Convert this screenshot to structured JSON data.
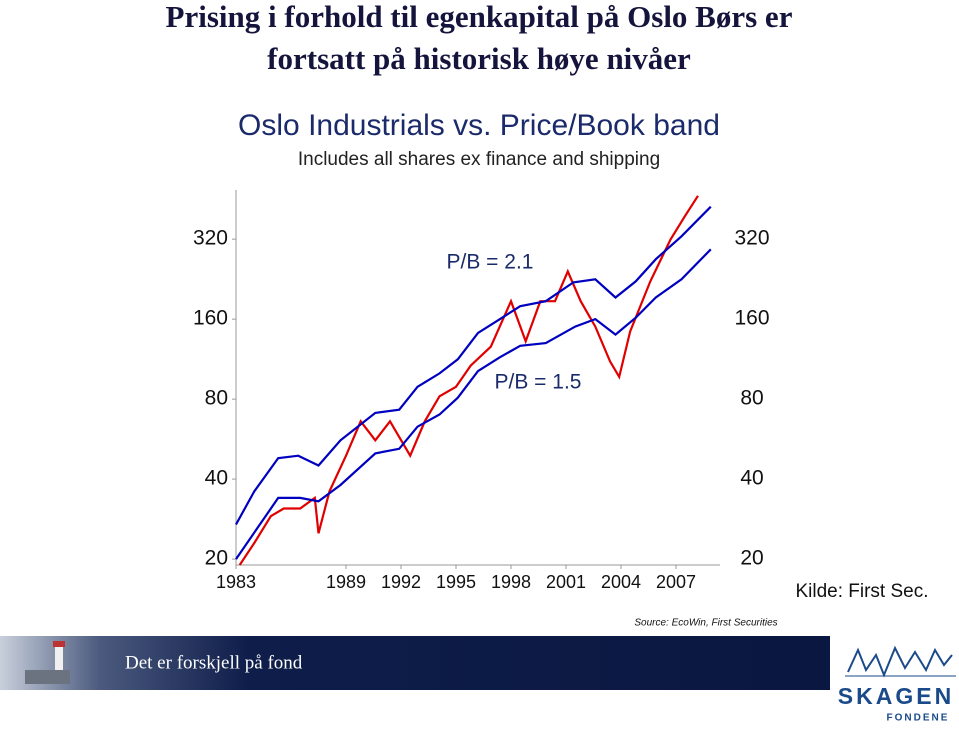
{
  "slide": {
    "title_lines": [
      "Prising i forhold til egenkapital på Oslo Børs er",
      "fortsatt på historisk høye nivåer"
    ],
    "source": "Source: EcoWin, First Securities",
    "kilde": "Kilde: First Sec.",
    "footer_slogan": "Det er forskjell på fond",
    "logo_name": "SKAGEN",
    "logo_sub": "FONDENE"
  },
  "chart_data": {
    "type": "line",
    "title": "Oslo Industrials vs. Price/Book band",
    "subtitle": "Includes all shares ex finance and shipping",
    "annotations": [
      "P/B = 2.1",
      "P/B = 1.5"
    ],
    "log_scale": true,
    "xlim": [
      1983,
      2009.4
    ],
    "xticks": [
      1983,
      1989,
      1992,
      1995,
      1998,
      2001,
      2004,
      2007
    ],
    "ylim": [
      19,
      490
    ],
    "yticks": [
      20,
      40,
      80,
      160,
      320
    ],
    "y2lim": [
      19,
      490
    ],
    "y2ticks": [
      20,
      40,
      80,
      160,
      320
    ],
    "series": [
      {
        "color": "#e00000",
        "x": [
          1983.2,
          1984.0,
          1984.9,
          1985.6,
          1986.5,
          1987.3,
          1987.5,
          1988.1,
          1989.0,
          1989.8,
          1990.6,
          1991.4,
          1992.5,
          1993.3,
          1994.1,
          1995.0,
          1995.8,
          1996.9,
          1998.0,
          1998.8,
          1999.6,
          2000.4,
          2001.1,
          2001.8,
          2002.6,
          2003.4,
          2003.9,
          2004.5,
          2005.6,
          2006.7,
          2007.5,
          2008.2
        ],
        "values": [
          19,
          23,
          29,
          31,
          31,
          34,
          25,
          36,
          49,
          66,
          56,
          66,
          49,
          66,
          82,
          89,
          107,
          126,
          187,
          132,
          187,
          187,
          242,
          187,
          150,
          111,
          97,
          144,
          222,
          319,
          392,
          466
        ]
      },
      {
        "color": "#0000c0",
        "x": [
          1983.0,
          1984.0,
          1985.3,
          1986.4,
          1987.5,
          1988.7,
          1990.6,
          1991.9,
          1992.9,
          1994.1,
          1995.1,
          1996.2,
          1997.4,
          1998.5,
          1999.9,
          2001.4,
          2002.6,
          2003.7,
          2004.8,
          2005.9,
          2007.3,
          2008.9
        ],
        "values": [
          27,
          36,
          48,
          49,
          45,
          56,
          71,
          73,
          89,
          100,
          113,
          142,
          160,
          179,
          187,
          220,
          226,
          193,
          222,
          269,
          328,
          424
        ]
      },
      {
        "color": "#0000c0",
        "x": [
          1983.0,
          1985.3,
          1986.5,
          1987.5,
          1988.7,
          1990.6,
          1991.9,
          1992.9,
          1994.1,
          1995.1,
          1996.2,
          1997.4,
          1998.5,
          1999.9,
          2001.5,
          2002.6,
          2003.7,
          2004.8,
          2005.9,
          2007.3,
          2008.9
        ],
        "values": [
          20,
          34,
          34,
          33,
          38,
          50,
          52,
          63,
          70,
          81,
          102,
          115,
          127,
          130,
          150,
          160,
          140,
          162,
          193,
          226,
          293
        ]
      }
    ]
  }
}
